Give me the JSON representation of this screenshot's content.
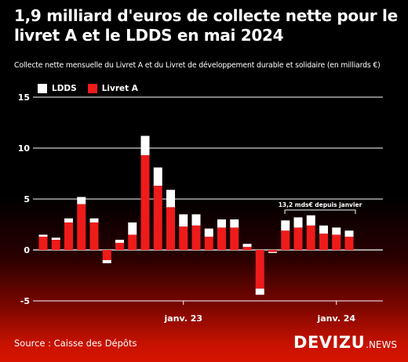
{
  "title": "1,9 milliard d'euros de collecte nette pour le livret A et le LDDS en mai 2024",
  "subtitle": "Collecte nette mensuelle du Livret A et du Livret de développement durable et solidaire (en milliards €)",
  "source": "Source : Caisse des Dépôts",
  "brand": {
    "name": "DEVIZU",
    "suffix": ".NEWS"
  },
  "colors": {
    "livret_a": "#ee1b1b",
    "ldds": "#ffffff",
    "background_top": "#000000",
    "background_bottom": "#d81400"
  },
  "chart_data": {
    "type": "bar",
    "stacked": true,
    "ylim": [
      -5,
      15
    ],
    "yticks": [
      -5,
      0,
      5,
      10,
      15
    ],
    "grid": true,
    "legend_position": "top-left",
    "x_tick_labels": [
      {
        "label": "janv. 23",
        "index": 11
      },
      {
        "label": "janv. 24",
        "index": 23
      }
    ],
    "series": [
      {
        "name": "Livret A",
        "values": [
          1.3,
          1.0,
          2.7,
          4.5,
          2.7,
          -1.0,
          0.7,
          1.5,
          9.3,
          6.3,
          4.2,
          2.3,
          2.4,
          1.3,
          2.2,
          2.2,
          0.3,
          -3.8,
          -0.2,
          1.9,
          2.2,
          2.4,
          1.6,
          1.5,
          1.3
        ]
      },
      {
        "name": "LDDS",
        "values": [
          0.2,
          0.2,
          0.4,
          0.7,
          0.4,
          -0.3,
          0.3,
          1.2,
          1.9,
          1.8,
          1.7,
          1.2,
          1.1,
          0.8,
          0.8,
          0.8,
          0.3,
          -0.6,
          -0.1,
          1.0,
          1.0,
          1.0,
          0.8,
          0.7,
          0.6
        ]
      }
    ],
    "annotation": {
      "text": "13,2 mds€ depuis janvier",
      "from_index": 20,
      "to_index": 24
    }
  }
}
